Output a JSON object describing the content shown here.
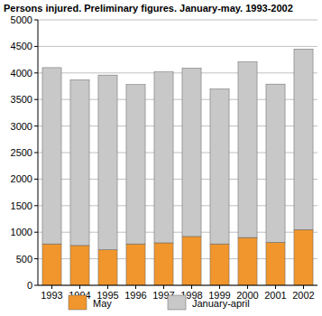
{
  "chart_data": {
    "type": "bar",
    "title": "Persons injured. Preliminary figures. January-may. 1993-2002",
    "categories": [
      "1993",
      "1994",
      "1995",
      "1996",
      "1997",
      "1998",
      "1999",
      "2000",
      "2001",
      "2002"
    ],
    "series": [
      {
        "name": "May",
        "color": "#f0962d",
        "values": [
          780,
          750,
          670,
          780,
          800,
          920,
          780,
          900,
          810,
          1050
        ]
      },
      {
        "name": "January-april",
        "color": "#c8c8c8",
        "values": [
          3320,
          3120,
          3290,
          3000,
          3220,
          3170,
          2920,
          3310,
          2980,
          3400
        ]
      }
    ],
    "ylim": [
      0,
      5000
    ],
    "yticks": [
      0,
      500,
      1000,
      1500,
      2000,
      2500,
      3000,
      3500,
      4000,
      4500,
      5000
    ],
    "stacked": true,
    "grid": true,
    "legend": "bottom"
  }
}
